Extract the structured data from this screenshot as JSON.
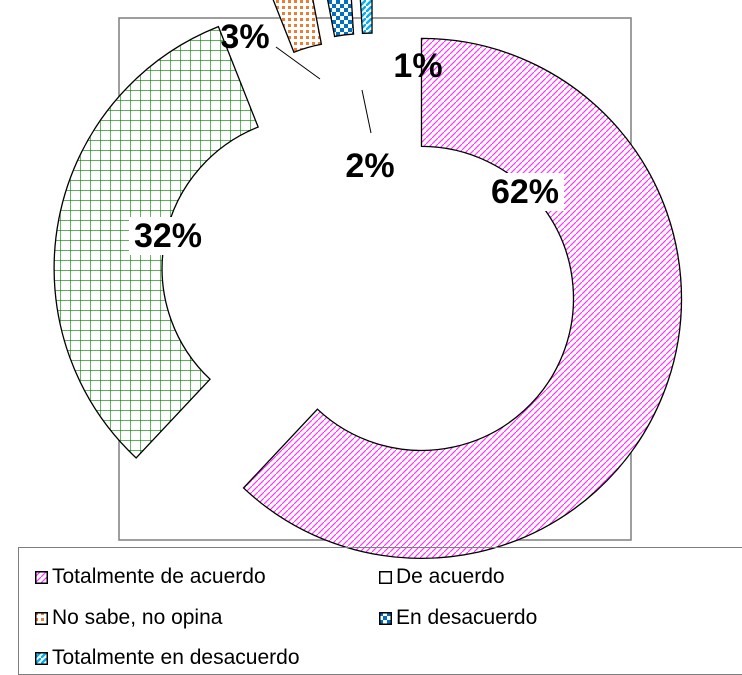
{
  "chart_data": {
    "type": "pie",
    "style": "exploded-donut",
    "series": [
      {
        "name": "Totalmente de acuerdo",
        "value": 62,
        "label": "62%",
        "color": "#ff33ff",
        "pattern": "diagonal-stripes"
      },
      {
        "name": "De acuerdo",
        "value": 32,
        "label": "32%",
        "color": "#008000",
        "pattern": "grid"
      },
      {
        "name": "No sabe, no opina",
        "value": 3,
        "label": "3%",
        "color": "#ed7d31",
        "pattern": "dots"
      },
      {
        "name": "En desacuerdo",
        "value": 2,
        "label": "2%",
        "color": "#0070c0",
        "pattern": "checker"
      },
      {
        "name": "Totalmente en desacuerdo",
        "value": 1,
        "label": "1%",
        "color": "#00b0f0",
        "pattern": "wide-diagonal"
      }
    ],
    "legend_position": "bottom",
    "title": ""
  },
  "legend": {
    "items": [
      {
        "label": "Totalmente de acuerdo"
      },
      {
        "label": "De acuerdo"
      },
      {
        "label": "No sabe, no opina"
      },
      {
        "label": "En desacuerdo"
      },
      {
        "label": "Totalmente en desacuerdo"
      }
    ]
  },
  "colors": {
    "plot_border": "#7f7f7f",
    "slice_outline": "#000000"
  }
}
